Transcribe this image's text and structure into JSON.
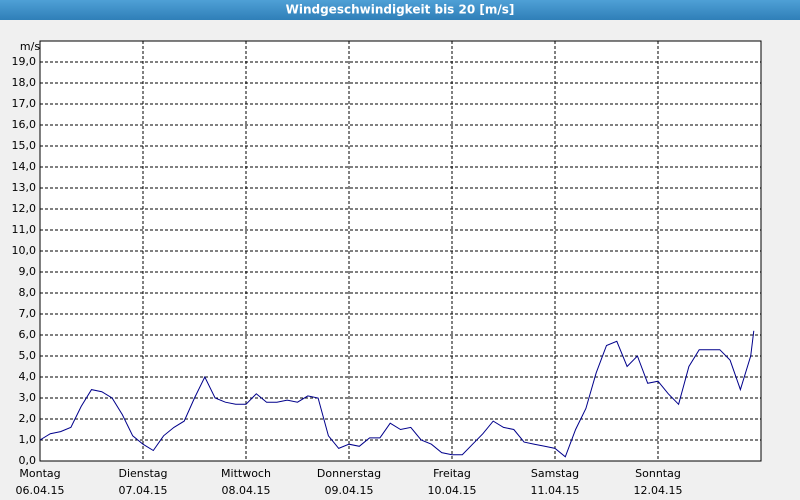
{
  "chart_data": {
    "type": "line",
    "title": "Windgeschwindigkeit bis 20 [m/s]",
    "y_label": "m/s",
    "xlim": [
      0,
      7
    ],
    "ylim": [
      0,
      20
    ],
    "grid": true,
    "color": "#00008b",
    "xticks": [
      {
        "value": 0,
        "label": "Montag"
      },
      {
        "value": 1,
        "label": "Dienstag"
      },
      {
        "value": 2,
        "label": "Mittwoch"
      },
      {
        "value": 3,
        "label": "Donnerstag"
      },
      {
        "value": 4,
        "label": "Freitag"
      },
      {
        "value": 5,
        "label": "Samstag"
      },
      {
        "value": 6,
        "label": "Sonntag"
      }
    ],
    "xtick_dates": [
      "06.04.15",
      "07.04.15",
      "08.04.15",
      "09.04.15",
      "10.04.15",
      "11.04.15",
      "12.04.15"
    ],
    "yticks": [
      {
        "value": 0,
        "label": "0,0"
      },
      {
        "value": 1,
        "label": "1,0"
      },
      {
        "value": 2,
        "label": "2,0"
      },
      {
        "value": 3,
        "label": "3,0"
      },
      {
        "value": 4,
        "label": "4,0"
      },
      {
        "value": 5,
        "label": "5,0"
      },
      {
        "value": 6,
        "label": "6,0"
      },
      {
        "value": 7,
        "label": "7,0"
      },
      {
        "value": 8,
        "label": "8,0"
      },
      {
        "value": 9,
        "label": "9,0"
      },
      {
        "value": 10,
        "label": "10,0"
      },
      {
        "value": 11,
        "label": "11,0"
      },
      {
        "value": 12,
        "label": "12,0"
      },
      {
        "value": 13,
        "label": "13,0"
      },
      {
        "value": 14,
        "label": "14,0"
      },
      {
        "value": 15,
        "label": "15,0"
      },
      {
        "value": 16,
        "label": "16,0"
      },
      {
        "value": 17,
        "label": "17,0"
      },
      {
        "value": 18,
        "label": "18,0"
      },
      {
        "value": 19,
        "label": "19,0"
      }
    ],
    "x": [
      0,
      0.1,
      0.2,
      0.3,
      0.4,
      0.5,
      0.6,
      0.7,
      0.8,
      0.9,
      1.0,
      1.1,
      1.2,
      1.3,
      1.4,
      1.5,
      1.6,
      1.7,
      1.8,
      1.9,
      2.0,
      2.1,
      2.2,
      2.3,
      2.4,
      2.5,
      2.6,
      2.7,
      2.8,
      2.9,
      3.0,
      3.1,
      3.2,
      3.3,
      3.4,
      3.5,
      3.6,
      3.7,
      3.8,
      3.9,
      4.0,
      4.1,
      4.2,
      4.3,
      4.4,
      4.5,
      4.6,
      4.7,
      4.8,
      4.9,
      5.0,
      5.1,
      5.2,
      5.3,
      5.4,
      5.5,
      5.6,
      5.7,
      5.8,
      5.9,
      6.0,
      6.1,
      6.2,
      6.3,
      6.4,
      6.5,
      6.6,
      6.7,
      6.8,
      6.9,
      6.93
    ],
    "values": [
      1.0,
      1.3,
      1.4,
      1.6,
      2.6,
      3.4,
      3.3,
      3.0,
      2.2,
      1.2,
      0.8,
      0.5,
      1.2,
      1.6,
      1.9,
      3.0,
      4.0,
      3.0,
      2.8,
      2.7,
      2.7,
      3.2,
      2.8,
      2.8,
      2.9,
      2.8,
      3.1,
      3.0,
      1.2,
      0.6,
      0.8,
      0.7,
      1.1,
      1.1,
      1.8,
      1.5,
      1.6,
      1.0,
      0.8,
      0.4,
      0.3,
      0.3,
      0.8,
      1.3,
      1.9,
      1.6,
      1.5,
      0.9,
      0.8,
      0.7,
      0.6,
      0.2,
      1.5,
      2.5,
      4.2,
      5.5,
      5.7,
      4.5,
      5.0,
      3.7,
      3.8,
      3.2,
      2.7,
      4.5,
      5.3,
      5.3,
      5.3,
      4.8,
      3.4,
      5.0,
      6.2
    ]
  }
}
